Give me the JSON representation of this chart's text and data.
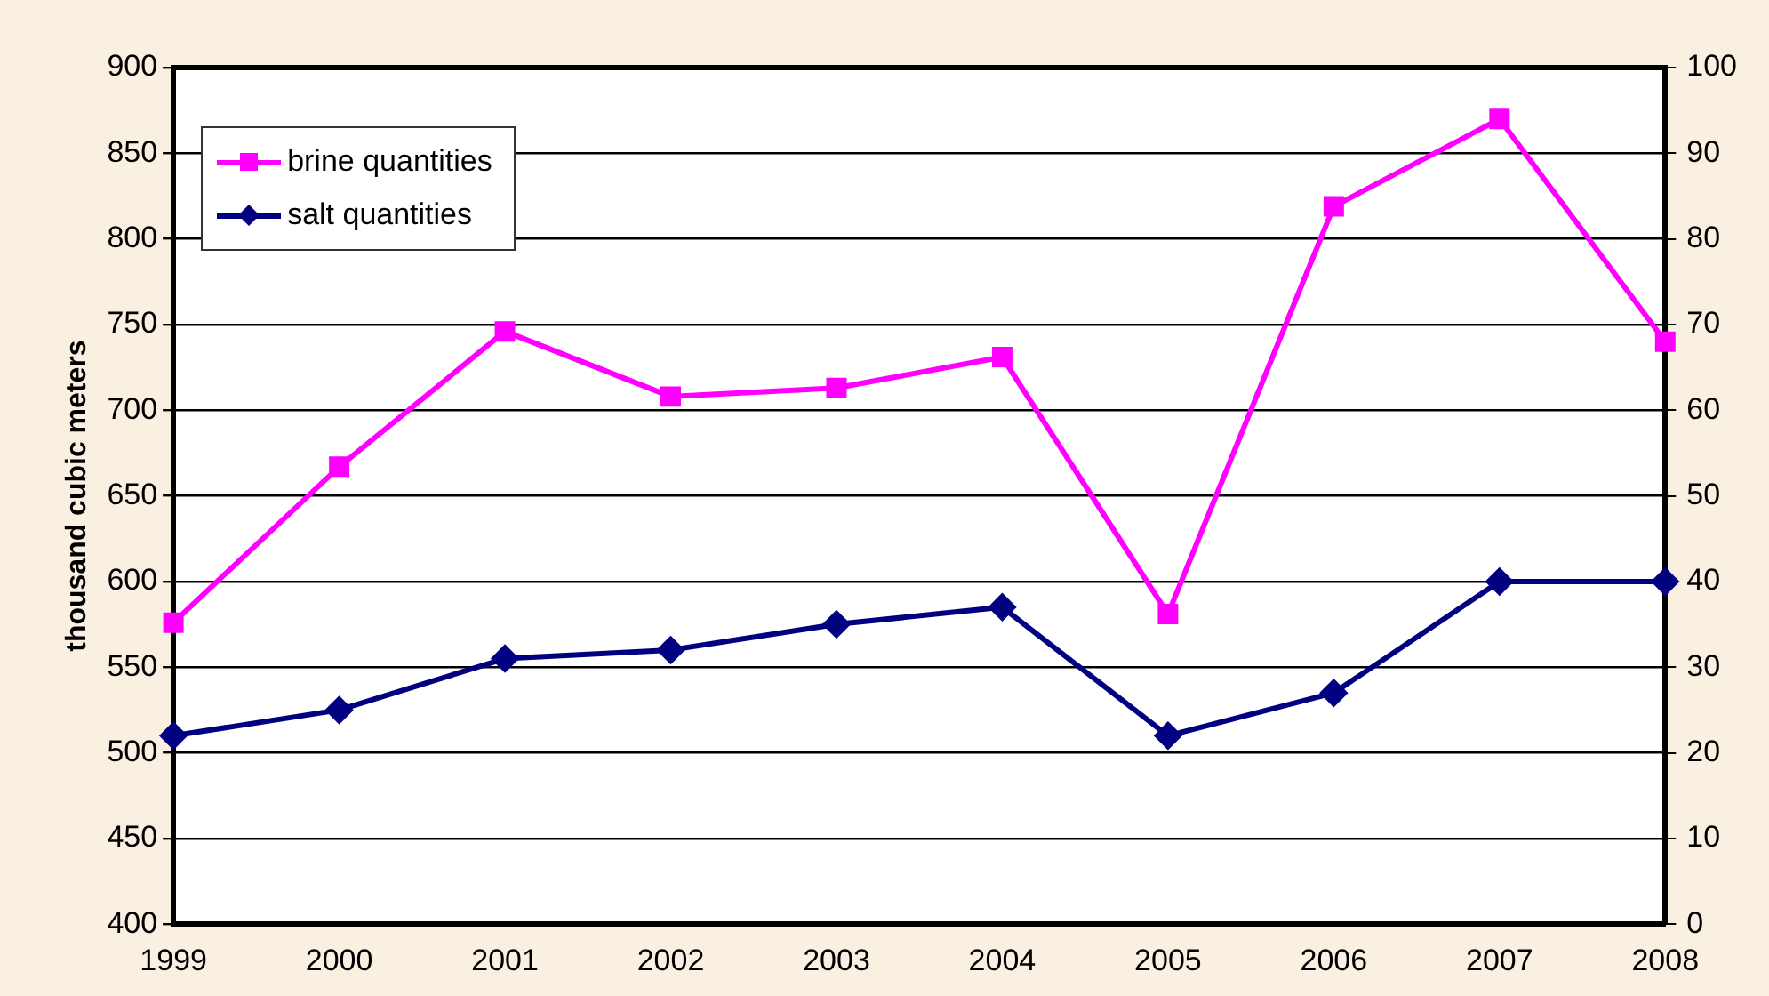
{
  "chart_data": {
    "type": "line",
    "ylabel": "thousand cubic meters",
    "categories": [
      "1999",
      "2000",
      "2001",
      "2002",
      "2003",
      "2004",
      "2005",
      "2006",
      "2007",
      "2008"
    ],
    "series": [
      {
        "name": "brine quantities",
        "color": "#ff00ff",
        "marker": "square",
        "values": [
          576,
          667,
          746,
          708,
          713,
          731,
          581,
          819,
          870,
          740
        ]
      },
      {
        "name": "salt quantities",
        "color": "#000080",
        "marker": "diamond",
        "axis": "y2",
        "values": [
          22,
          25,
          31,
          32,
          35,
          37,
          22,
          27,
          40,
          40
        ]
      }
    ],
    "ylim": [
      400,
      900
    ],
    "yticks": [
      400,
      450,
      500,
      550,
      600,
      650,
      700,
      750,
      800,
      850,
      900
    ],
    "y2lim": [
      0,
      100
    ],
    "y2ticks": [
      0,
      10,
      20,
      30,
      40,
      50,
      60,
      70,
      80,
      90,
      100
    ],
    "grid": "y",
    "legend": "top left"
  }
}
